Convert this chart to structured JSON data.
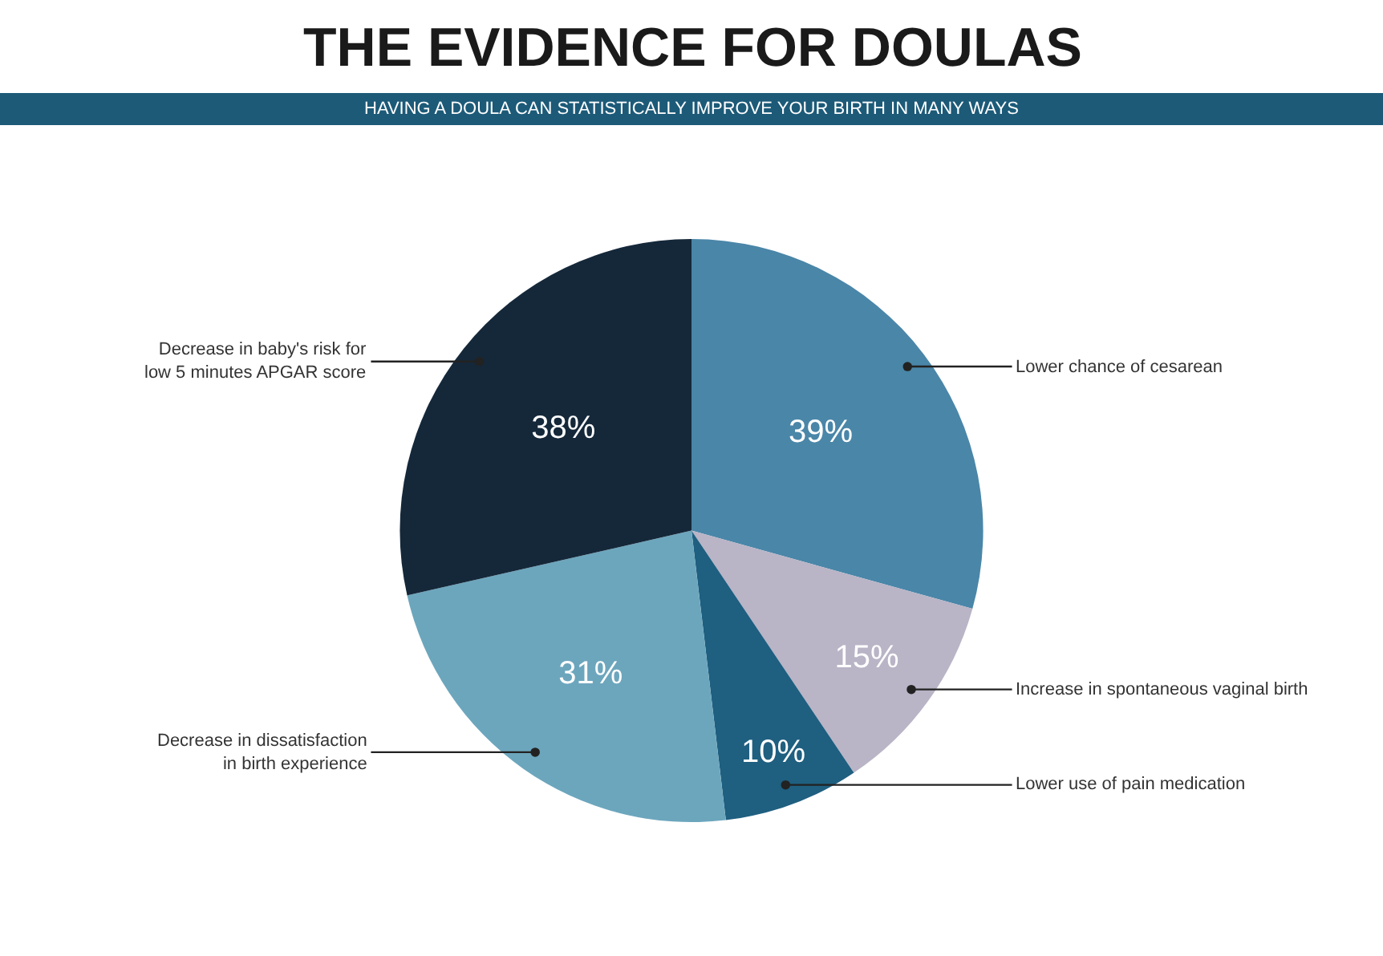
{
  "chart_data": {
    "type": "pie",
    "title": "THE EVIDENCE FOR DOULAS",
    "subtitle": "HAVING A DOULA CAN STATISTICALLY IMPROVE YOUR BIRTH IN MANY WAYS",
    "categories": [
      "Lower chance of cesarean",
      "Increase in spontaneous vaginal birth",
      "Lower use of pain medication",
      "Decrease in dissatisfaction\nin birth experience",
      "Decrease in baby's risk for\nlow 5 minutes APGAR score"
    ],
    "values": [
      39,
      15,
      10,
      31,
      38
    ],
    "value_labels": [
      "39%",
      "15%",
      "10%",
      "31%",
      "38%"
    ],
    "colors": [
      "#4a86a8",
      "#b9b4c6",
      "#1f5f80",
      "#6ca6bd",
      "#15283a"
    ],
    "legend": false
  }
}
